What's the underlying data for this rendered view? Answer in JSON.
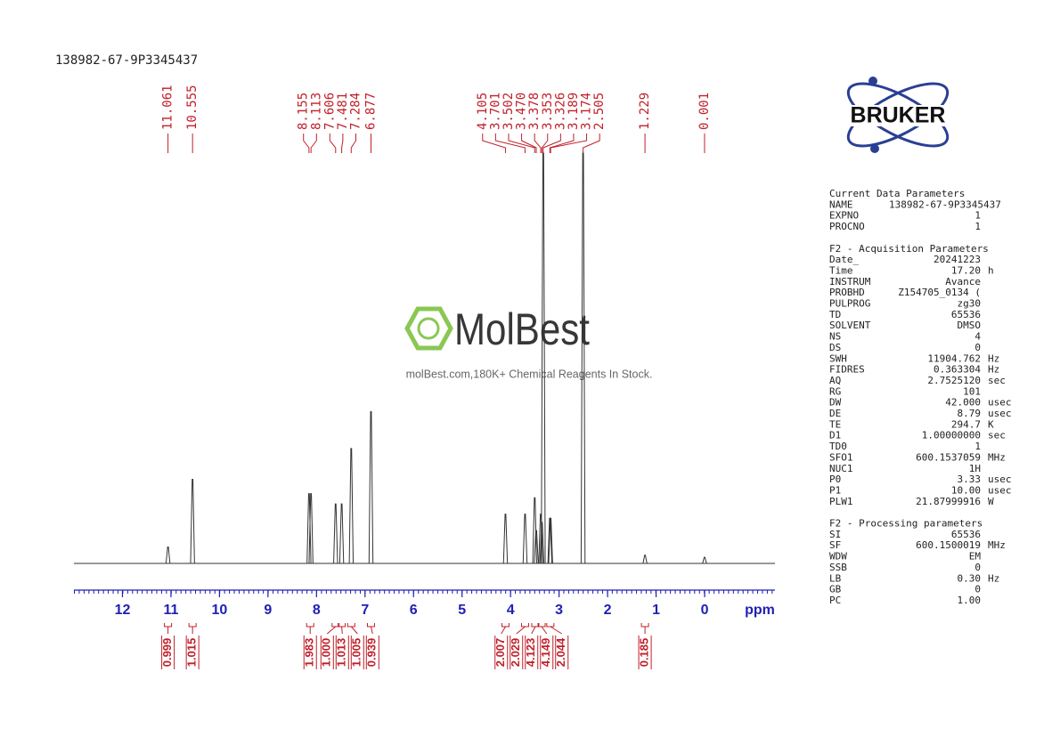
{
  "chart_data": {
    "type": "spectrum",
    "title": "138982-67-9P3345437",
    "x_label": "ppm",
    "xlim": [
      13,
      -1.45
    ],
    "xticks": [
      12,
      11,
      10,
      9,
      8,
      7,
      6,
      5,
      4,
      3,
      2,
      1,
      0
    ],
    "ylim": [
      0,
      100
    ],
    "color": "#333333",
    "label_color": "#c0202a",
    "axis_color": "#1f1fb4",
    "peaks": {
      "x": [
        11.061,
        10.555,
        8.155,
        8.113,
        7.606,
        7.481,
        7.284,
        6.877,
        4.105,
        3.701,
        3.502,
        3.47,
        3.378,
        3.353,
        3.326,
        3.189,
        3.174,
        2.505,
        1.229,
        0.001
      ],
      "x_labels": [
        "11.061",
        "10.555",
        "8.155",
        "8.113",
        "7.606",
        "7.481",
        "7.284",
        "6.877",
        "4.105",
        "3.701",
        "3.502",
        "3.470",
        "3.378",
        "3.353",
        "3.326",
        "3.189",
        "3.174",
        "2.505",
        "1.229",
        "0.001"
      ],
      "values": [
        4,
        20.5,
        17,
        17,
        14.5,
        14.5,
        28,
        37,
        12,
        12,
        16,
        8,
        12,
        10,
        100,
        11,
        11,
        100,
        2,
        1.5
      ]
    },
    "integrals": {
      "x": [
        11.061,
        10.555,
        8.13,
        7.606,
        7.481,
        7.284,
        6.877,
        4.105,
        3.701,
        3.49,
        3.36,
        3.18,
        1.229
      ],
      "values": [
        0.999,
        1.015,
        1.983,
        1,
        1.013,
        1.005,
        0.939,
        2.007,
        2.029,
        4.123,
        4.149,
        2.044,
        0.185
      ],
      "value_labels": [
        "0.999",
        "1.015",
        "1.983",
        "1.000",
        "1.013",
        "1.005",
        "0.939",
        "2.007",
        "2.029",
        "4.123",
        "4.149",
        "2.044",
        "0.185"
      ]
    }
  },
  "logo": {
    "text": "BRUKER"
  },
  "watermark": {
    "name": "MolBest",
    "tagline": "molBest.com,180K+ Chemical Reagents In Stock."
  },
  "parameters": [
    {
      "title": "Current Data Parameters",
      "rows": [
        [
          "NAME",
          "138982-67-9P3345437"
        ],
        [
          "EXPNO",
          "1"
        ],
        [
          "PROCNO",
          "1"
        ]
      ]
    },
    {
      "title": "F2 - Acquisition Parameters",
      "rows": [
        [
          "Date_",
          "20241223"
        ],
        [
          "Time",
          "17.20",
          "h"
        ],
        [
          "INSTRUM",
          "Avance"
        ],
        [
          "PROBHD",
          "Z154705_0134 ("
        ],
        [
          "PULPROG",
          "zg30"
        ],
        [
          "TD",
          "65536"
        ],
        [
          "SOLVENT",
          "DMSO"
        ],
        [
          "NS",
          "4"
        ],
        [
          "DS",
          "0"
        ],
        [
          "SWH",
          "11904.762",
          "Hz"
        ],
        [
          "FIDRES",
          "0.363304",
          "Hz"
        ],
        [
          "AQ",
          "2.7525120",
          "sec"
        ],
        [
          "RG",
          "101"
        ],
        [
          "DW",
          "42.000",
          "usec"
        ],
        [
          "DE",
          "8.79",
          "usec"
        ],
        [
          "TE",
          "294.7",
          "K"
        ],
        [
          "D1",
          "1.00000000",
          "sec"
        ],
        [
          "TD0",
          "1"
        ],
        [
          "SFO1",
          "600.1537059",
          "MHz"
        ],
        [
          "NUC1",
          "1H"
        ],
        [
          "P0",
          "3.33",
          "usec"
        ],
        [
          "P1",
          "10.00",
          "usec"
        ],
        [
          "PLW1",
          "21.87999916",
          "W"
        ]
      ]
    },
    {
      "title": "F2 - Processing parameters",
      "rows": [
        [
          "SI",
          "65536"
        ],
        [
          "SF",
          "600.1500019",
          "MHz"
        ],
        [
          "WDW",
          "EM"
        ],
        [
          "SSB",
          "0"
        ],
        [
          "LB",
          "0.30",
          "Hz"
        ],
        [
          "GB",
          "0"
        ],
        [
          "PC",
          "1.00"
        ]
      ]
    }
  ]
}
